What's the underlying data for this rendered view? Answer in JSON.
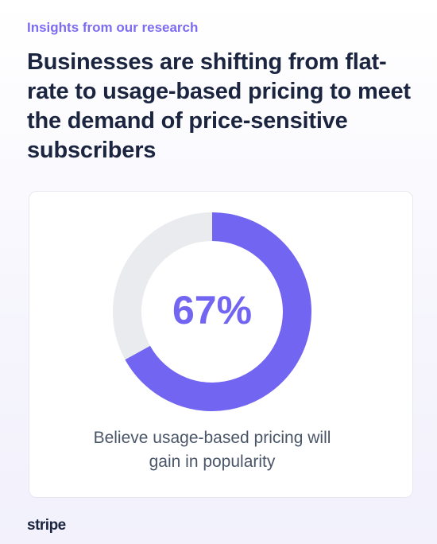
{
  "eyebrow": "Insights from our research",
  "title": "Businesses are shifting from flat-rate to usage-based pricing to meet the demand of price-sensitive subscribers",
  "chart_data": {
    "type": "donut",
    "values": [
      67
    ],
    "value_labels": [
      "67%"
    ],
    "ylim": [
      0,
      100
    ],
    "color": "#7265f2",
    "track_color": "#e9ebee",
    "caption": "Believe usage-based pricing will gain in popularity"
  },
  "footer": {
    "logo": "stripe"
  }
}
